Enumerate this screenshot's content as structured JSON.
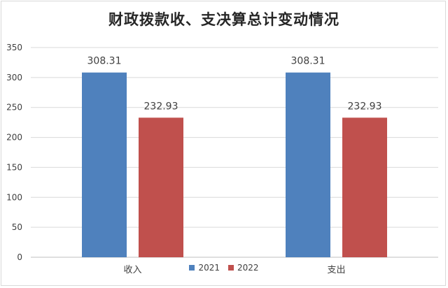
{
  "chart_data": {
    "type": "bar",
    "title": "财政拨款收、支决算总计变动情况",
    "categories": [
      "收入",
      "支出"
    ],
    "series": [
      {
        "name": "2021",
        "values": [
          308.31,
          308.31
        ],
        "color": "#4f81bd"
      },
      {
        "name": "2022",
        "values": [
          232.93,
          232.93
        ],
        "color": "#c0504d"
      }
    ],
    "ylim": [
      0,
      350
    ],
    "yticks": [
      0,
      50,
      100,
      150,
      200,
      250,
      300,
      350
    ],
    "grid": true,
    "legend_position": "bottom",
    "data_labels": true
  }
}
